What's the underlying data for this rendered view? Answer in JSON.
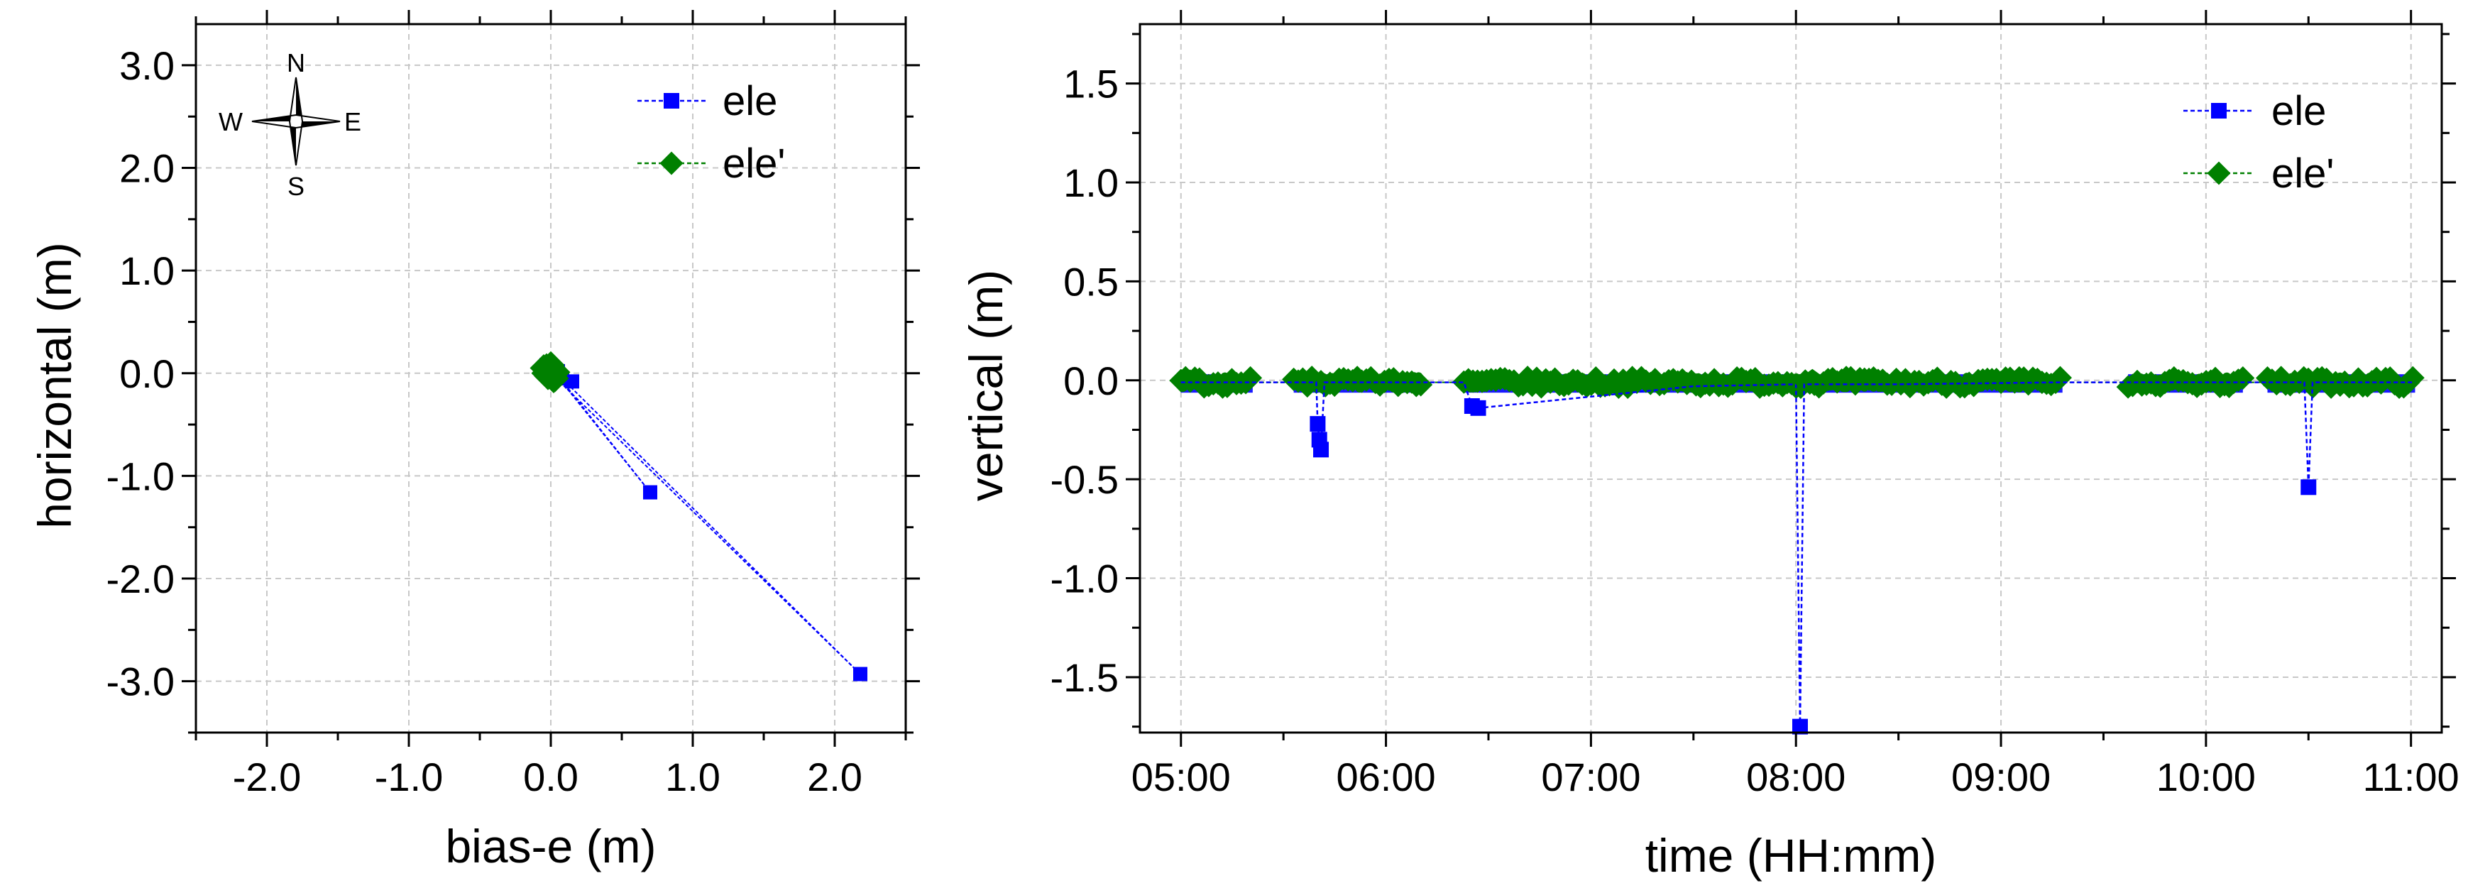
{
  "chart_data": [
    {
      "type": "scatter",
      "xlabel": "bias-e (m)",
      "ylabel": "horizontal (m)",
      "xlim": [
        -2.5,
        2.5
      ],
      "ylim": [
        -3.5,
        3.4
      ],
      "xticks": [
        -2.0,
        -1.0,
        0.0,
        1.0,
        2.0
      ],
      "yticks": [
        3.0,
        2.0,
        1.0,
        0.0,
        -1.0,
        -2.0,
        -3.0
      ],
      "xtick_labels": [
        "-2.0",
        "-1.0",
        "0.0",
        "1.0",
        "2.0"
      ],
      "ytick_labels": [
        "3.0",
        "2.0",
        "1.0",
        "0.0",
        "-1.0",
        "-2.0",
        "-3.0"
      ],
      "grid": true,
      "legend_position": "top-right",
      "compass": {
        "n": "N",
        "s": "S",
        "e": "E",
        "w": "W"
      },
      "series": [
        {
          "name": "ele",
          "color": "#0000ff",
          "marker": "square",
          "x": [
            0.0,
            0.05,
            -0.03,
            0.15,
            0.04,
            0.7,
            0.02,
            2.18,
            0.0,
            0.08,
            -0.02,
            0.03
          ],
          "y": [
            0.05,
            0.02,
            0.08,
            -0.08,
            -0.02,
            -1.16,
            0.03,
            -2.93,
            0.0,
            -0.05,
            0.06,
            0.01
          ]
        },
        {
          "name": "ele'",
          "color": "#008000",
          "marker": "diamond",
          "x": [
            -0.05,
            -0.02,
            0.02,
            0.0,
            -0.04,
            0.03,
            0.01,
            -0.01,
            0.04,
            -0.03,
            0.02,
            0.0
          ],
          "y": [
            0.05,
            -0.03,
            0.02,
            0.08,
            0.0,
            -0.05,
            0.04,
            -0.02,
            0.01,
            0.06,
            -0.06,
            0.03
          ]
        }
      ]
    },
    {
      "type": "line",
      "xlabel": "time (HH:mm)",
      "ylabel": "vertical (m)",
      "xlim": [
        4.8,
        11.15
      ],
      "ylim": [
        -1.78,
        1.8
      ],
      "xticks": [
        5,
        6,
        7,
        8,
        9,
        10,
        11
      ],
      "xtick_labels": [
        "05:00",
        "06:00",
        "07:00",
        "08:00",
        "09:00",
        "10:00",
        "11:00"
      ],
      "yticks": [
        1.5,
        1.0,
        0.5,
        0.0,
        -0.5,
        -1.0,
        -1.5
      ],
      "ytick_labels": [
        "1.5",
        "1.0",
        "0.5",
        "0.0",
        "-0.5",
        "-1.0",
        "-1.5"
      ],
      "grid": true,
      "legend_position": "top-right",
      "data_segments": [
        [
          5.0,
          5.35
        ],
        [
          5.55,
          6.17
        ],
        [
          6.38,
          9.3
        ],
        [
          9.62,
          10.18
        ],
        [
          10.3,
          11.02
        ]
      ],
      "series": [
        {
          "name": "ele",
          "color": "#0000ff",
          "marker": "square",
          "x": [
            5.0,
            5.35,
            5.55,
            5.66,
            5.667,
            5.675,
            5.683,
            5.7,
            6.17,
            6.38,
            6.42,
            6.45,
            7.5,
            8.0,
            8.02,
            8.04,
            8.5,
            9.3,
            9.62,
            10.18,
            10.3,
            10.48,
            10.5,
            10.52,
            11.02
          ],
          "y": [
            -0.01,
            -0.01,
            -0.01,
            -0.01,
            -0.22,
            -0.3,
            -0.35,
            -0.01,
            -0.01,
            -0.01,
            -0.13,
            -0.14,
            -0.03,
            -0.02,
            -1.75,
            -0.02,
            -0.02,
            -0.01,
            -0.01,
            -0.01,
            -0.01,
            -0.01,
            -0.54,
            -0.01,
            -0.01
          ]
        },
        {
          "name": "ele'",
          "color": "#008000",
          "marker": "diamond",
          "x": [
            5.0,
            5.35,
            5.55,
            6.17,
            6.38,
            7.0,
            7.5,
            8.0,
            8.08,
            8.2,
            9.3,
            9.62,
            10.18,
            10.3,
            11.02
          ],
          "y": [
            -0.01,
            -0.01,
            0.0,
            -0.01,
            -0.01,
            -0.01,
            -0.01,
            -0.02,
            0.03,
            -0.01,
            -0.01,
            -0.01,
            -0.01,
            0.0,
            -0.01
          ]
        }
      ]
    }
  ]
}
